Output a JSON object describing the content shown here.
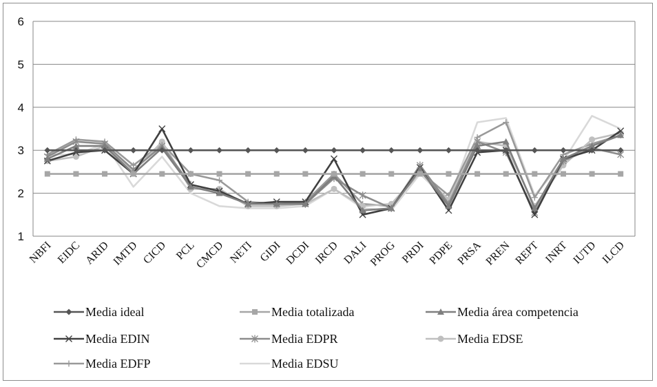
{
  "chart_data": {
    "type": "line",
    "title": "",
    "xlabel": "",
    "ylabel": "",
    "ylim": [
      1,
      6
    ],
    "yticks": [
      "1",
      "2",
      "3",
      "4",
      "5",
      "6"
    ],
    "grid": "horizontal",
    "legend_position": "bottom",
    "categories": [
      "NBFI",
      "EIDC",
      "ARID",
      "IMTD",
      "CICD",
      "PCL",
      "CMCD",
      "NETI",
      "GIDI",
      "DCDI",
      "IRCD",
      "DALI",
      "PROG",
      "PRDI",
      "PDPE",
      "PRSA",
      "PREN",
      "REPT",
      "INRT",
      "IUTD",
      "ILCD"
    ],
    "series": [
      {
        "name": "Media ideal",
        "color": "#555555",
        "marker": "diamond",
        "values": [
          3,
          3,
          3,
          3,
          3,
          3,
          3,
          3,
          3,
          3,
          3,
          3,
          3,
          3,
          3,
          3,
          3,
          3,
          3,
          3,
          3
        ]
      },
      {
        "name": "Media totalizada",
        "color": "#a6a6a6",
        "marker": "square",
        "values": [
          2.45,
          2.45,
          2.45,
          2.45,
          2.45,
          2.45,
          2.45,
          2.45,
          2.45,
          2.45,
          2.45,
          2.45,
          2.45,
          2.45,
          2.45,
          2.45,
          2.45,
          2.45,
          2.45,
          2.45,
          2.45
        ]
      },
      {
        "name": "Media área competencia",
        "color": "#7f7f7f",
        "marker": "triangle",
        "values": [
          2.8,
          3.1,
          3.1,
          2.45,
          3.05,
          2.15,
          2.0,
          1.75,
          1.75,
          1.75,
          2.4,
          1.6,
          1.65,
          2.55,
          1.7,
          3.1,
          3.2,
          1.65,
          2.8,
          3.1,
          3.35
        ]
      },
      {
        "name": "Media EDIN",
        "color": "#404040",
        "marker": "x",
        "values": [
          2.75,
          2.95,
          3.0,
          2.45,
          3.5,
          2.2,
          2.05,
          1.75,
          1.8,
          1.8,
          2.8,
          1.5,
          1.65,
          2.6,
          1.6,
          2.95,
          3.0,
          1.5,
          2.8,
          3.0,
          3.45
        ]
      },
      {
        "name": "Media EDPR",
        "color": "#8c8c8c",
        "marker": "asterisk",
        "values": [
          2.85,
          3.2,
          3.15,
          2.55,
          3.1,
          2.2,
          2.05,
          1.75,
          1.75,
          1.75,
          2.35,
          1.95,
          1.65,
          2.65,
          1.75,
          3.2,
          2.95,
          1.55,
          2.75,
          3.05,
          2.9
        ]
      },
      {
        "name": "Media EDSE",
        "color": "#bfbfbf",
        "marker": "circle",
        "values": [
          2.75,
          2.85,
          3.1,
          2.5,
          3.2,
          2.1,
          2.1,
          1.7,
          1.7,
          1.75,
          2.1,
          1.7,
          1.75,
          2.5,
          1.85,
          3.2,
          3.1,
          1.7,
          2.65,
          3.25,
          3.4
        ]
      },
      {
        "name": "Media EDFP",
        "color": "#999999",
        "marker": "plus",
        "values": [
          2.9,
          3.25,
          3.2,
          2.65,
          3.15,
          2.45,
          2.3,
          1.8,
          1.75,
          1.8,
          2.45,
          1.75,
          1.7,
          2.5,
          1.95,
          3.3,
          3.65,
          1.9,
          2.9,
          3.15,
          3.35
        ]
      },
      {
        "name": "Media EDSU",
        "color": "#d9d9d9",
        "marker": "none",
        "values": [
          2.9,
          2.9,
          3.15,
          2.15,
          2.85,
          2.0,
          1.7,
          1.65,
          1.65,
          1.7,
          2.1,
          1.65,
          1.6,
          2.45,
          1.8,
          3.65,
          3.75,
          1.95,
          2.75,
          3.8,
          3.5
        ]
      }
    ]
  }
}
